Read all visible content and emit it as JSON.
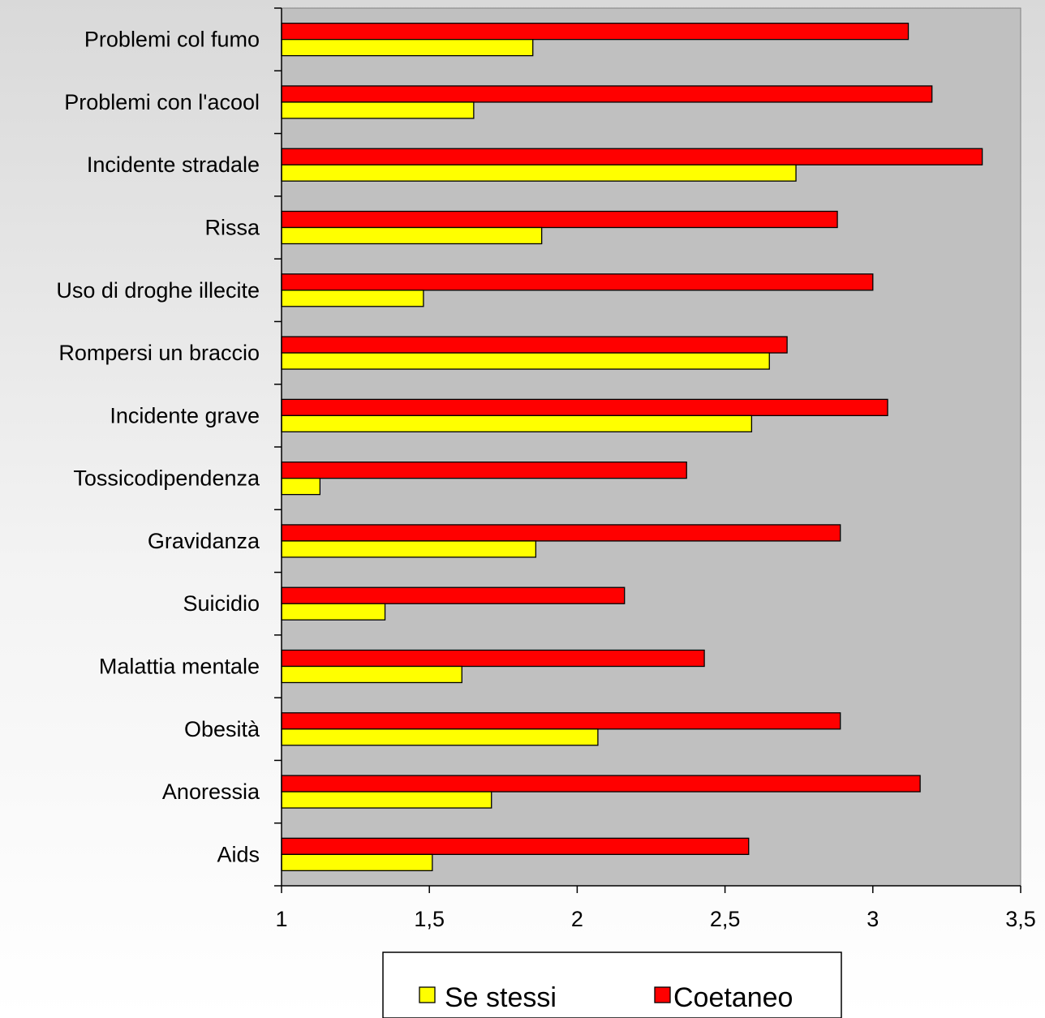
{
  "chart_data": {
    "type": "bar",
    "orientation": "horizontal",
    "categories": [
      "Problemi col fumo",
      "Problemi con l'acool",
      "Incidente stradale",
      "Rissa",
      "Uso di droghe illecite",
      "Rompersi un braccio",
      "Incidente grave",
      "Tossicodipendenza",
      "Gravidanza",
      "Suicidio",
      "Malattia mentale",
      "Obesità",
      "Anoressia",
      "Aids"
    ],
    "series": [
      {
        "name": "Se stessi",
        "color": "#ffff00",
        "values": [
          1.85,
          1.65,
          2.74,
          1.88,
          1.48,
          2.65,
          2.59,
          1.13,
          1.86,
          1.35,
          1.61,
          2.07,
          1.71,
          1.51
        ]
      },
      {
        "name": "Coetaneo",
        "color": "#ff0000",
        "values": [
          3.12,
          3.2,
          3.37,
          2.88,
          3.0,
          2.71,
          3.05,
          2.37,
          2.89,
          2.16,
          2.43,
          2.89,
          3.16,
          2.58
        ]
      }
    ],
    "xlim": [
      1,
      3.5
    ],
    "xticks": [
      "1",
      "1,5",
      "2",
      "2,5",
      "3",
      "3,5"
    ],
    "plot_background": "#c0c0c0",
    "grid": false,
    "legend_position": "bottom"
  }
}
